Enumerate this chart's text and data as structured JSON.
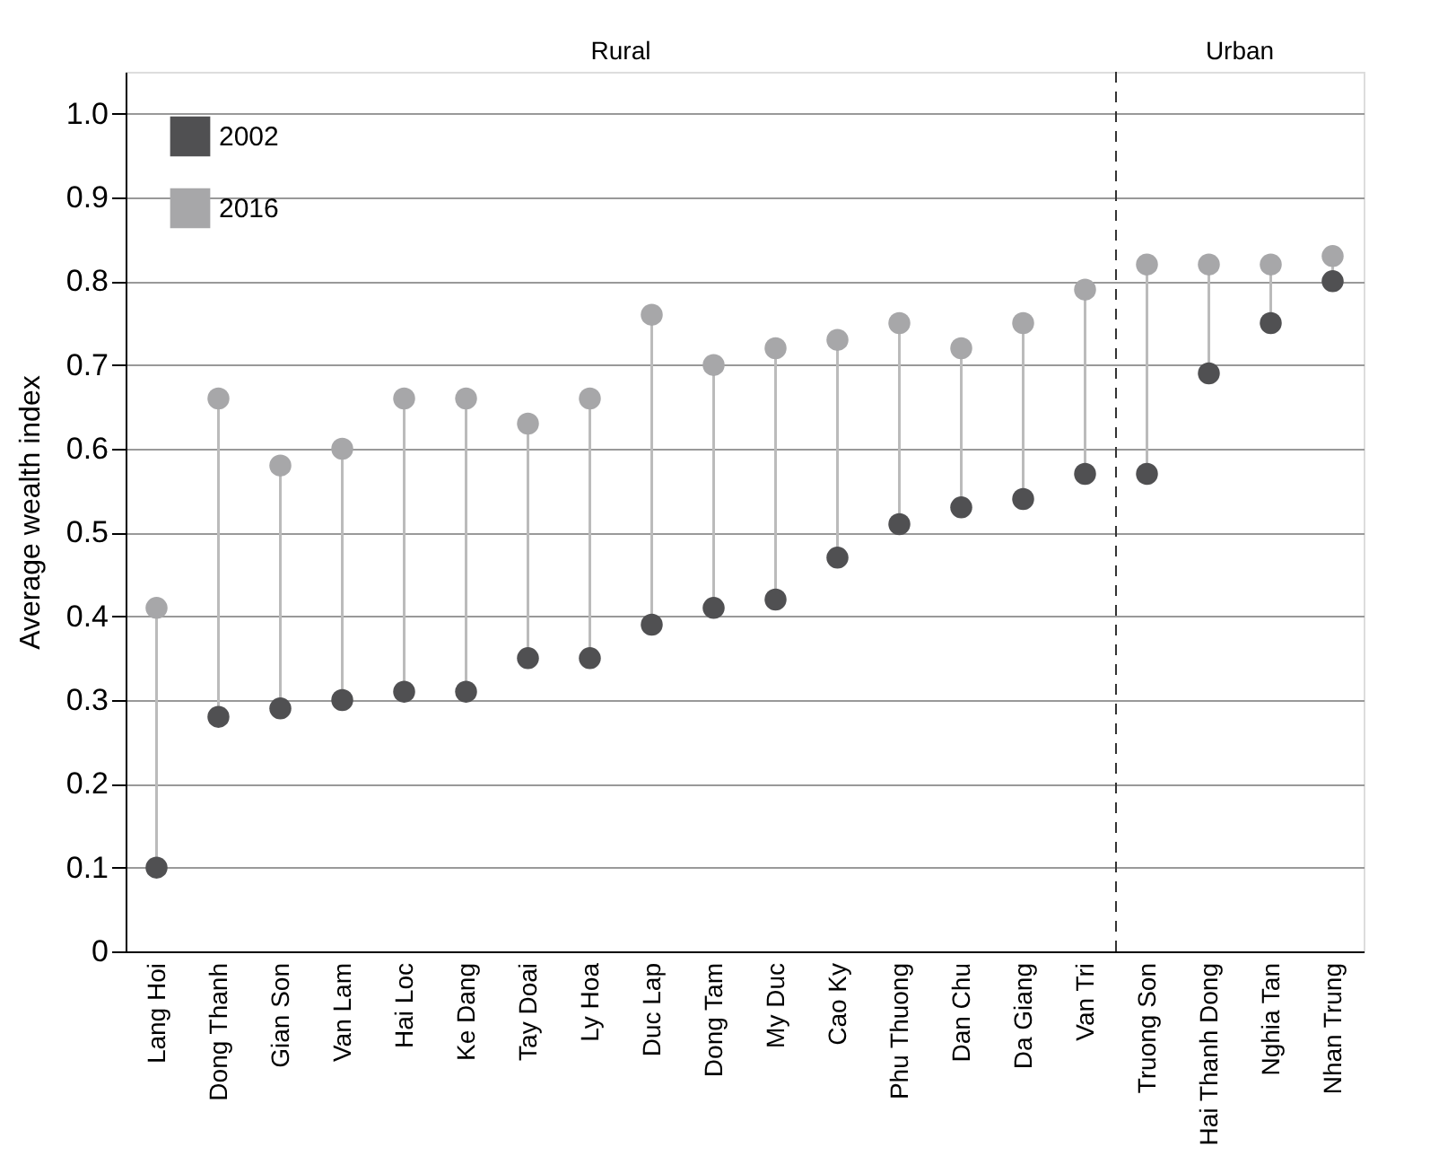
{
  "chart_data": {
    "type": "scatter",
    "ylabel": "Average wealth index",
    "categories": [
      "Lang Hoi",
      "Dong Thanh",
      "Gian Son",
      "Van Lam",
      "Hai Loc",
      "Ke Dang",
      "Tay Doai",
      "Ly Hoa",
      "Duc Lap",
      "Dong Tam",
      "My Duc",
      "Cao Ky",
      "Phu Thuong",
      "Dan Chu",
      "Da Giang",
      "Van Tri",
      "Truong Son",
      "Hai Thanh Dong",
      "Nghia Tan",
      "Nhan Trung"
    ],
    "series": [
      {
        "name": "2002",
        "color": "#505052",
        "values": [
          0.1,
          0.28,
          0.29,
          0.3,
          0.31,
          0.31,
          0.35,
          0.35,
          0.39,
          0.41,
          0.42,
          0.47,
          0.51,
          0.53,
          0.54,
          0.57,
          0.57,
          0.69,
          0.75,
          0.8
        ]
      },
      {
        "name": "2016",
        "color": "#a7a7a9",
        "values": [
          0.41,
          0.66,
          0.58,
          0.6,
          0.66,
          0.66,
          0.63,
          0.66,
          0.76,
          0.7,
          0.72,
          0.73,
          0.75,
          0.72,
          0.75,
          0.79,
          0.82,
          0.82,
          0.82,
          0.83
        ]
      }
    ],
    "ylim": [
      0,
      1.05
    ],
    "yticks": [
      0,
      0.1,
      0.2,
      0.3,
      0.4,
      0.5,
      0.6,
      0.7,
      0.8,
      0.9,
      {
        "value": 1,
        "label": "1.0"
      }
    ],
    "annotations": [
      "Rural",
      "Urban"
    ],
    "ref_lines": [
      {
        "axis": "x",
        "value": "Truong Son",
        "color": "#333333",
        "line_style": "dashed"
      }
    ],
    "grid": "y",
    "legend": "top left",
    "marker": "circle"
  }
}
